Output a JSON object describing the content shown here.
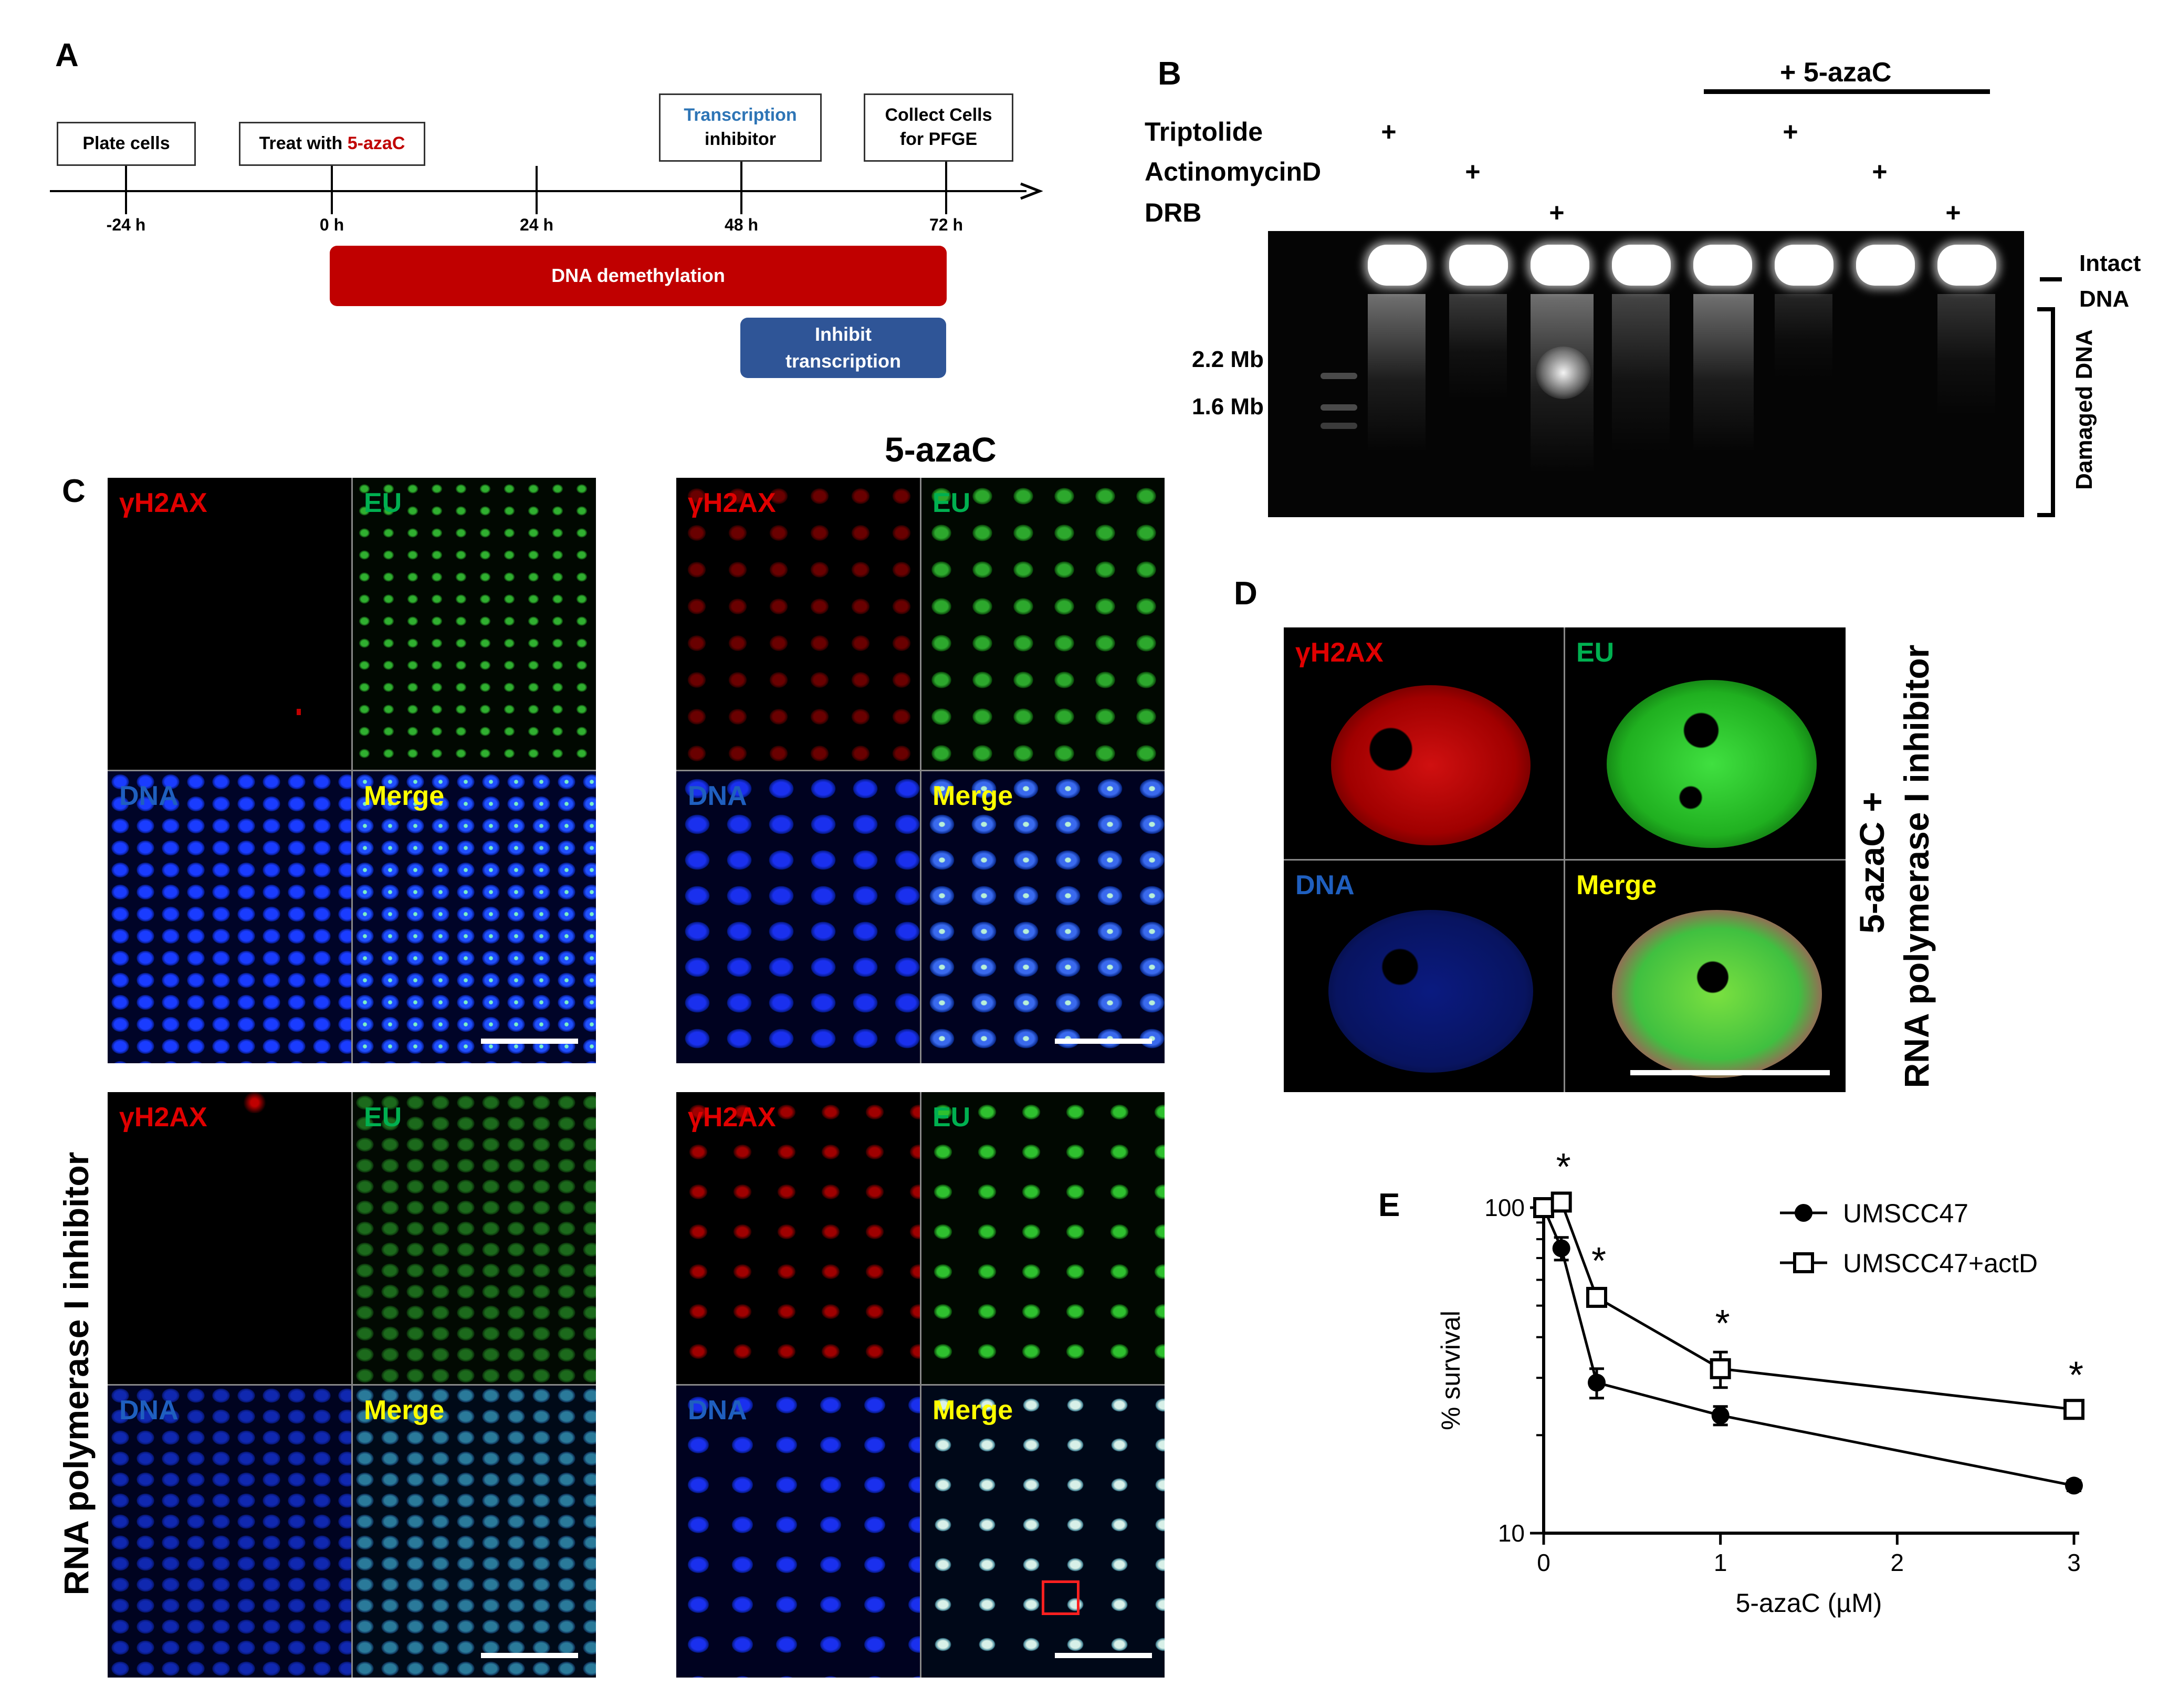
{
  "panels": {
    "a": "A",
    "b": "B",
    "c": "C",
    "d": "D",
    "e": "E"
  },
  "timeline": {
    "boxes": {
      "plate": "Plate cells",
      "treat_prefix": "Treat with ",
      "treat_drug": "5-azaC",
      "transcription_line1": "Transcription",
      "transcription_line2": "inhibitor",
      "collect_line1": "Collect Cells",
      "collect_line2": "for PFGE"
    },
    "ticks": [
      "-24 h",
      "0 h",
      "24 h",
      "48 h",
      "72 h"
    ],
    "demethylation": "DNA demethylation",
    "inhibit_line1": "Inhibit",
    "inhibit_line2": "transcription",
    "colors": {
      "demethylation": "#c00000",
      "inhibit": "#2f5597",
      "drug": "#c00000",
      "transcription": "#2e75b6"
    }
  },
  "gel": {
    "group_label": "+ 5-azaC",
    "rows": [
      "Triptolide",
      "ActinomycinD",
      "DRB"
    ],
    "plus": "+",
    "markers": [
      "2.2 Mb",
      "1.6 Mb"
    ],
    "intact_line1": "Intact",
    "intact_line2": "DNA",
    "damaged": "Damaged DNA"
  },
  "microscopy": {
    "condition_top_right": "5-azaC",
    "condition_bottom_left": "RNA polymerase I inhibitor",
    "labels": {
      "h2ax": "γH2AX",
      "eu": "EU",
      "dna": "DNA",
      "merge": "Merge"
    },
    "colors": {
      "h2ax": "#e00000",
      "eu": "#00b050",
      "dna": "#1f5fbf",
      "merge": "#ffff00"
    }
  },
  "detail": {
    "side_line1": "5-azaC +",
    "side_line2": "RNA polymerase I inhibitor"
  },
  "chart_data": {
    "type": "line",
    "xlabel": "5-azaC (µM)",
    "ylabel": "% survival",
    "x_ticks": [
      "0",
      "1",
      "2",
      "3"
    ],
    "y_ticks": [
      "10",
      "100"
    ],
    "yscale": "log",
    "xlim": [
      0,
      3
    ],
    "ylim": [
      10,
      100
    ],
    "legend_position": "top-right",
    "series": [
      {
        "name": "UMSCC47",
        "marker": "filled-circle",
        "x": [
          0,
          0.1,
          0.3,
          1,
          3
        ],
        "y": [
          100,
          75,
          29,
          23,
          14
        ],
        "err": [
          5,
          6,
          3,
          1.5,
          0.5
        ]
      },
      {
        "name": "UMSCC47+actD",
        "marker": "open-square",
        "x": [
          0,
          0.1,
          0.3,
          1,
          3
        ],
        "y": [
          100,
          104,
          53,
          32,
          24
        ],
        "err": [
          5,
          5,
          3,
          4,
          1
        ]
      }
    ],
    "significance_marker": "*",
    "significance_x": [
      0.1,
      0.3,
      1,
      3
    ]
  }
}
